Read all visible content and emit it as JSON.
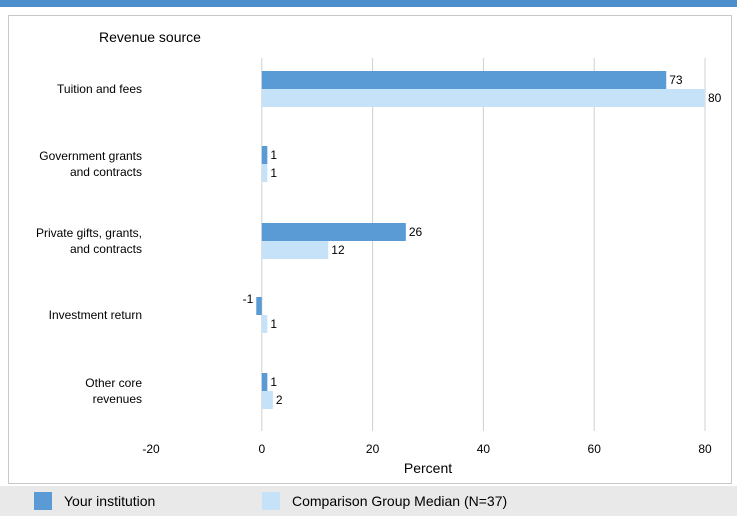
{
  "chart_data": {
    "type": "bar",
    "orientation": "horizontal",
    "title": "Revenue source",
    "xlabel": "Percent",
    "xlim": [
      -20,
      80
    ],
    "xticks": [
      -20,
      0,
      20,
      40,
      60,
      80
    ],
    "grid": true,
    "legend_position": "bottom",
    "categories": [
      [
        "Tuition and fees"
      ],
      [
        "Government grants",
        "and contracts"
      ],
      [
        "Private gifts, grants,",
        "and contracts"
      ],
      [
        "Investment return"
      ],
      [
        "Other core",
        "revenues"
      ]
    ],
    "series": [
      {
        "name": "Your institution",
        "color": "#5b9bd5",
        "values": [
          73,
          1,
          26,
          -1,
          1
        ]
      },
      {
        "name": "Comparison Group Median (N=37)",
        "color": "#c6e2f8",
        "values": [
          80,
          1,
          12,
          1,
          2
        ]
      }
    ]
  },
  "colors": {
    "accent": "#4d8fcc",
    "grid": "#d0d0d0",
    "legend_bg": "#e9e9e9"
  }
}
